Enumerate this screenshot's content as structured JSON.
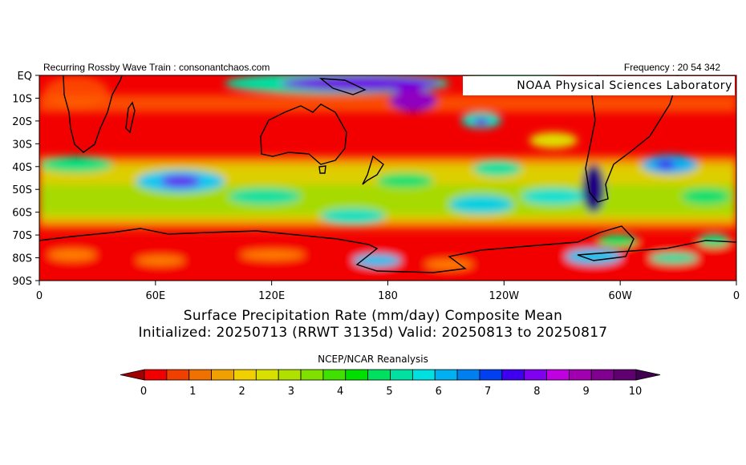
{
  "header": {
    "left": "Recurring Rossby Wave Train : consonantchaos.com",
    "right": "Frequency : 20 54 342"
  },
  "map": {
    "overlay_label": "NOAA Physical Sciences Laboratory",
    "lat_labels": [
      "EQ",
      "10S",
      "20S",
      "30S",
      "40S",
      "50S",
      "60S",
      "70S",
      "80S",
      "90S"
    ],
    "lon_labels": [
      "0",
      "60E",
      "120E",
      "180",
      "120W",
      "60W",
      "0"
    ],
    "background_color": "#f20000"
  },
  "titles": {
    "line1": "Surface Precipitation Rate (mm/day) Composite Mean",
    "line2": "Initialized: 20250713 (RRWT 3135d) Valid: 20250813 to 20250817",
    "source": "NCEP/NCAR Reanalysis"
  },
  "colorbar": {
    "colors": [
      "#a00000",
      "#f00000",
      "#f04000",
      "#f07000",
      "#f0a000",
      "#f0d000",
      "#d8e000",
      "#b0e000",
      "#80e000",
      "#40e000",
      "#00e000",
      "#00e060",
      "#00e0a0",
      "#00e0e0",
      "#00b0f0",
      "#0080f0",
      "#0040f0",
      "#4000f0",
      "#8000f0",
      "#c000e0",
      "#a000b0",
      "#800090",
      "#600070",
      "#400050"
    ],
    "tick_labels": [
      "0",
      "1",
      "2",
      "3",
      "4",
      "5",
      "6",
      "7",
      "8",
      "9",
      "10"
    ]
  }
}
